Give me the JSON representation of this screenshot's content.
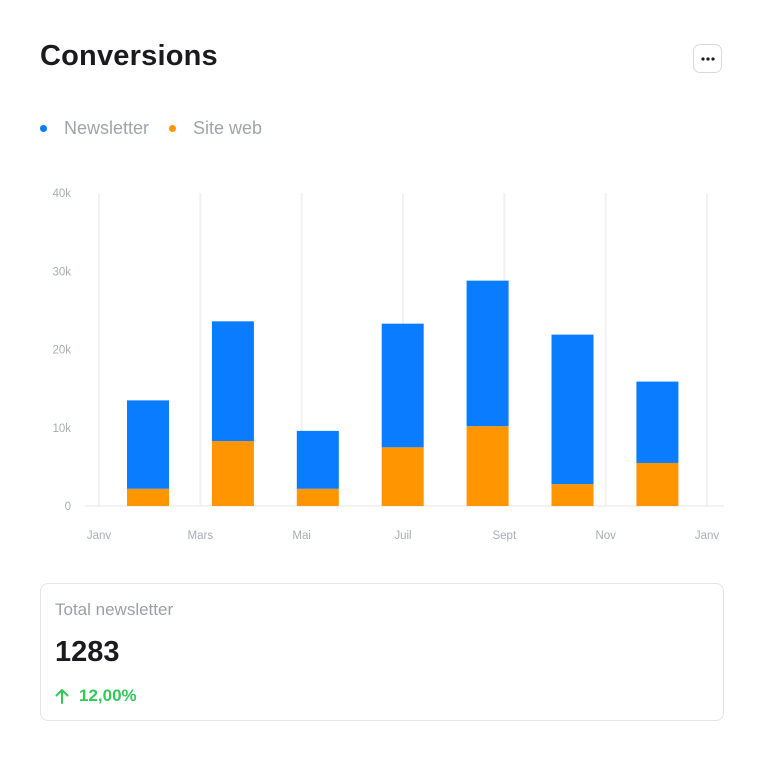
{
  "header": {
    "title": "Conversions",
    "more_icon": "more-horizontal-icon"
  },
  "legend": [
    {
      "label": "Newsletter",
      "color": "#0a7cff"
    },
    {
      "label": "Site web",
      "color": "#ff9500"
    }
  ],
  "chart_data": {
    "type": "bar",
    "stacked": true,
    "x_tick_labels": [
      "Janv",
      "Mars",
      "Mai",
      "Juil",
      "Sept",
      "Nov",
      "Janv"
    ],
    "y_tick_labels": [
      "0",
      "10k",
      "20k",
      "30k",
      "40k"
    ],
    "ylim": [
      0,
      40000
    ],
    "grid": "vertical",
    "legend_position": "top-left",
    "series": [
      {
        "name": "Site web",
        "color": "#ff9500",
        "values": [
          2200,
          8300,
          2200,
          7500,
          10200,
          2800,
          5500
        ]
      },
      {
        "name": "Newsletter",
        "color": "#0a7cff",
        "values": [
          11300,
          15300,
          7400,
          15800,
          18600,
          19100,
          10400
        ]
      }
    ]
  },
  "summary": {
    "label": "Total newsletter",
    "value": "1283",
    "delta": "12,00%",
    "delta_icon": "arrow-up-icon",
    "delta_color": "#34c759"
  }
}
